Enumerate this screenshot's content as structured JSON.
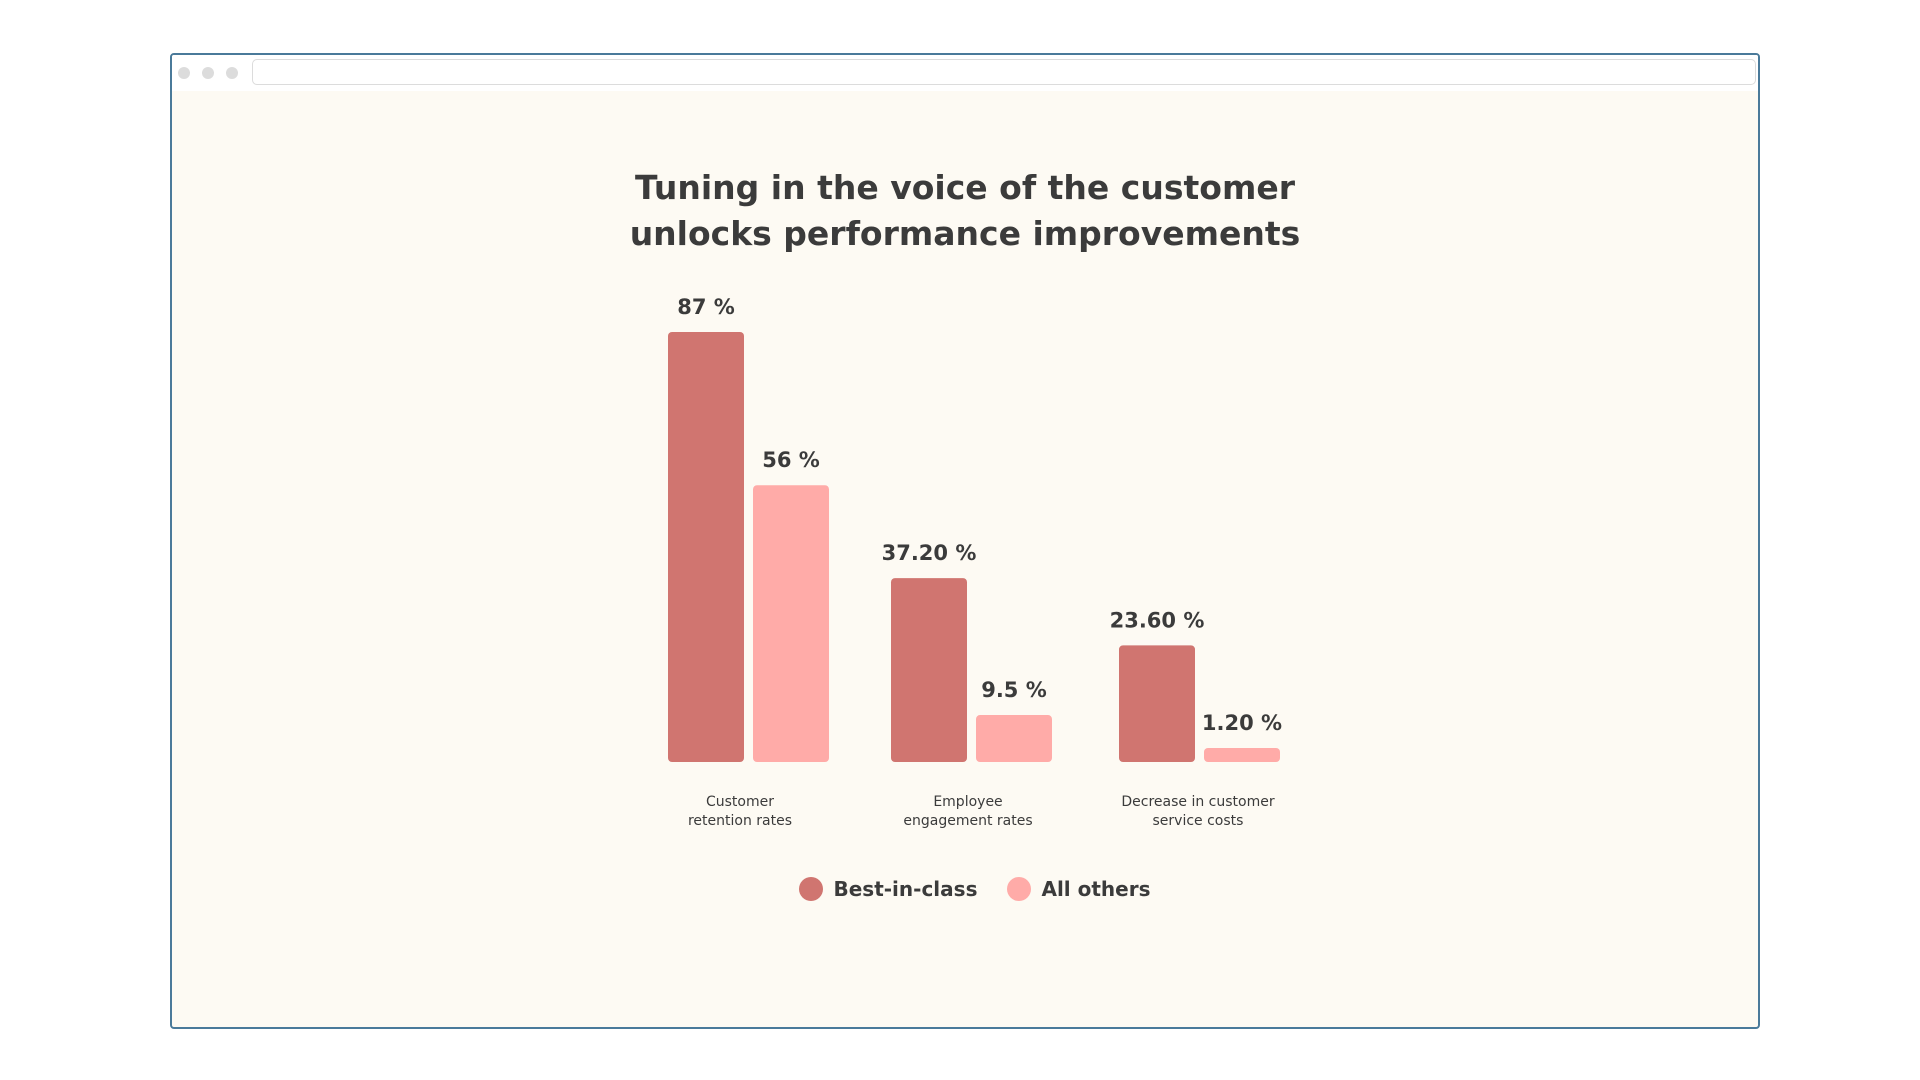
{
  "chart_data": {
    "type": "bar",
    "title_lines": [
      "Tuning in the voice of the customer",
      "unlocks performance improvements"
    ],
    "categories": [
      [
        "Customer",
        "retention rates"
      ],
      [
        "Employee",
        "engagement rates"
      ],
      [
        "Decrease in customer",
        "service costs"
      ]
    ],
    "series": [
      {
        "name": "Best-in-class",
        "color": "#d07570",
        "values": [
          87,
          37.2,
          23.6
        ],
        "labels": [
          "87 %",
          "37.20 %",
          "23.60 %"
        ]
      },
      {
        "name": "All others",
        "color": "#ffaba8",
        "values": [
          56,
          9.5,
          1.2
        ],
        "labels": [
          "56 %",
          "9.5 %",
          "1.20 %"
        ]
      }
    ],
    "legend_position": "bottom",
    "grid": false,
    "ylim": [
      0,
      90
    ]
  }
}
